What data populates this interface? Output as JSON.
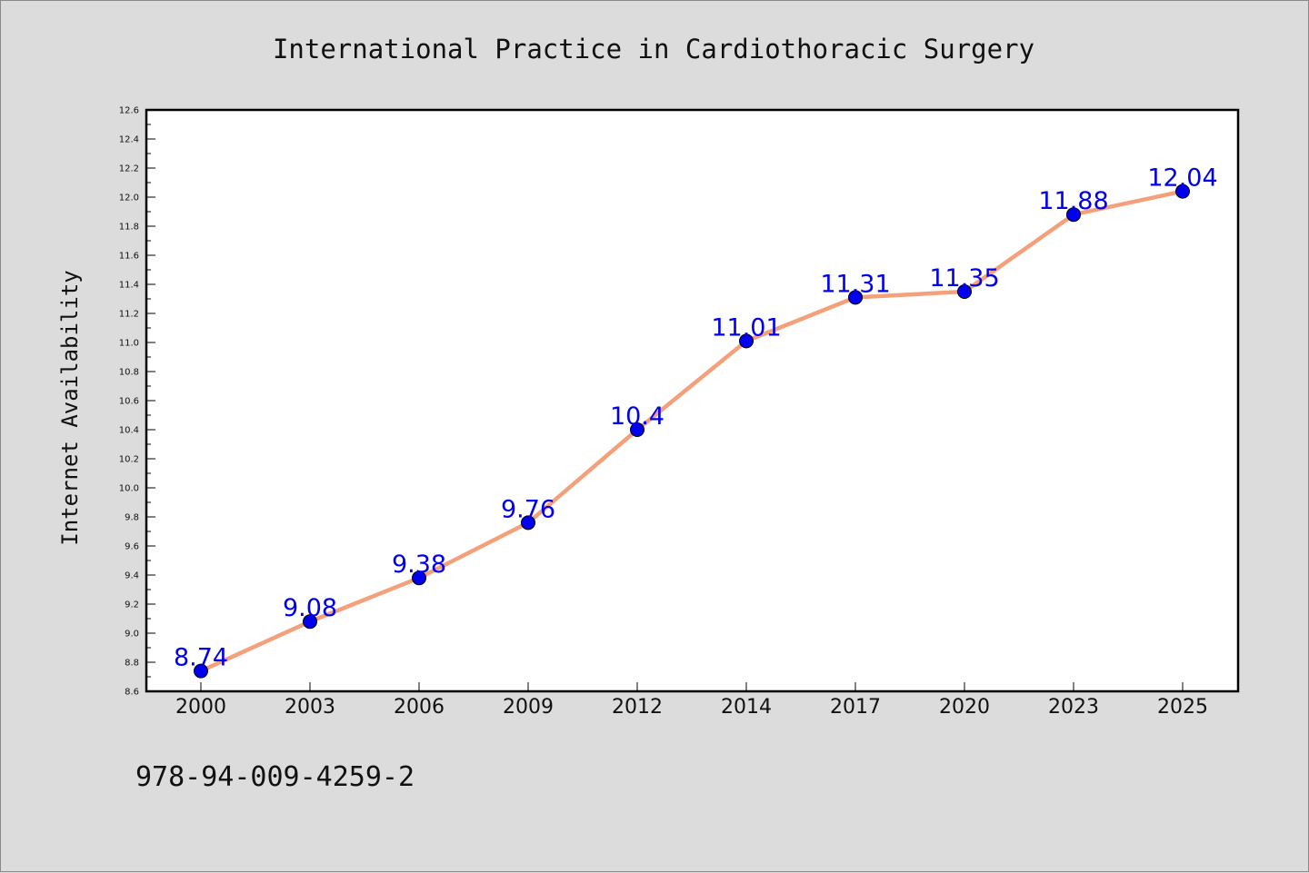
{
  "chart_data": {
    "type": "line",
    "title": "International Practice in Cardiothoracic Surgery",
    "xlabel": "",
    "ylabel": "Internet Availability",
    "categories": [
      "2000",
      "2003",
      "2006",
      "2009",
      "2012",
      "2014",
      "2017",
      "2020",
      "2023",
      "2025"
    ],
    "series": [
      {
        "values": [
          8.74,
          9.08,
          9.38,
          9.76,
          10.4,
          11.01,
          11.31,
          11.35,
          11.88,
          12.04
        ],
        "labels": [
          "8.74",
          "9.08",
          "9.38",
          "9.76",
          "10.4",
          "11.01",
          "11.31",
          "11.35",
          "11.88",
          "12.04"
        ],
        "line_color": "#f4a07a",
        "marker_color": "#0000ee",
        "label_color": "#0000ee"
      }
    ],
    "ylim": [
      8.6,
      12.6
    ],
    "y_ticks": [
      "8.6",
      "8.8",
      "9.0",
      "9.2",
      "9.4",
      "9.6",
      "9.8",
      "10.0",
      "10.2",
      "10.4",
      "10.6",
      "10.8",
      "11.0",
      "11.2",
      "11.4",
      "11.6",
      "11.8",
      "12.0",
      "12.2",
      "12.4",
      "12.6"
    ],
    "grid": false,
    "legend": "none",
    "background_color": "#dcdcdc",
    "plot_background_color": "#ffffff",
    "footnote": "978-94-009-4259-2"
  }
}
